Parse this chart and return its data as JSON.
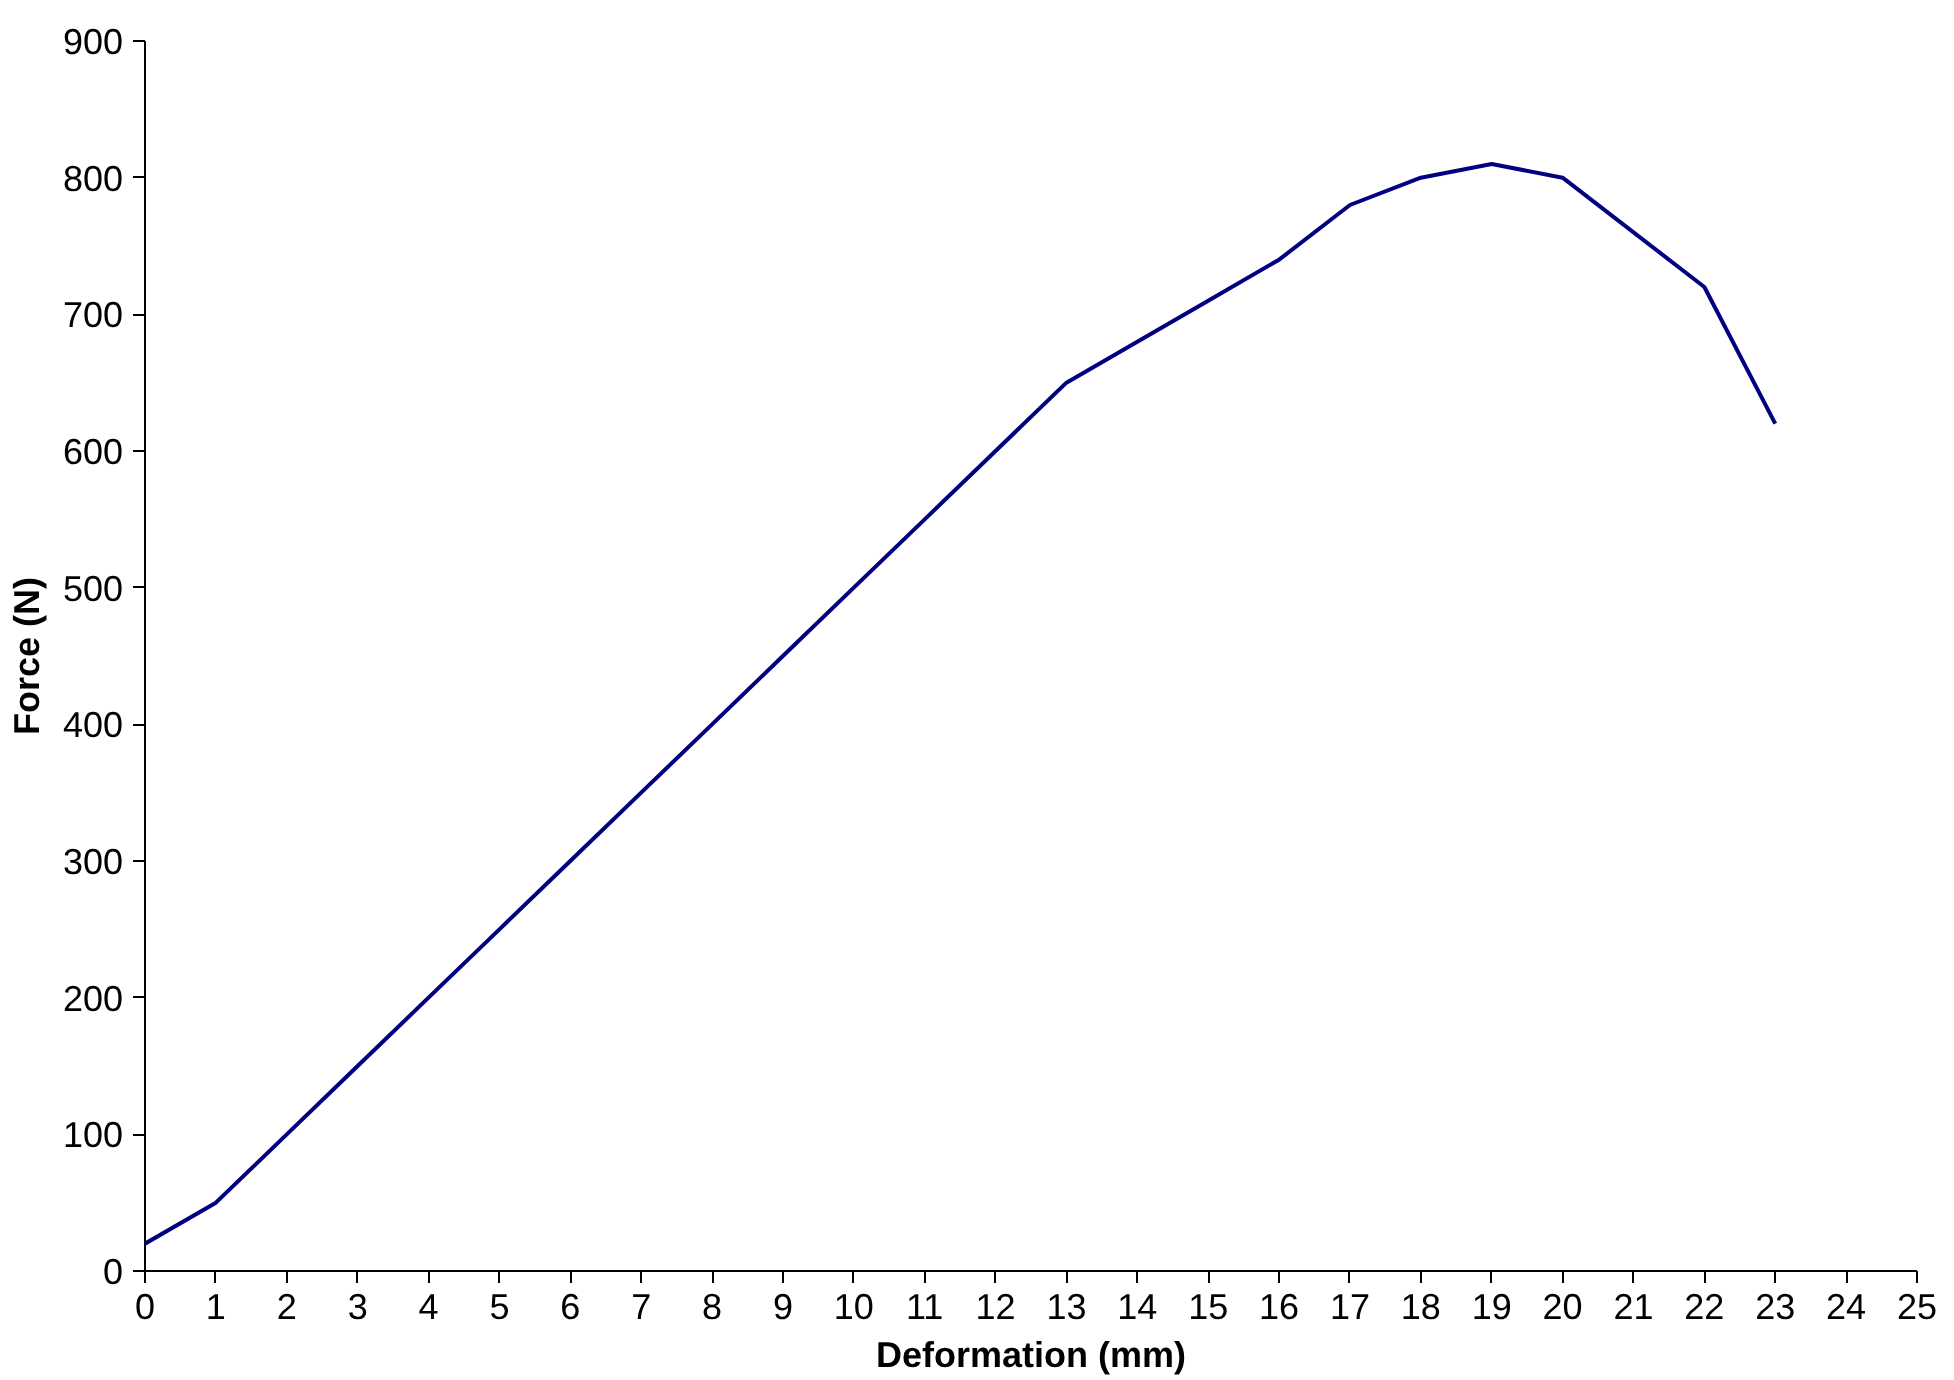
{
  "chart_data": {
    "type": "line",
    "xlabel": "Deformation (mm)",
    "ylabel": "Force (N)",
    "x": [
      0,
      1,
      2,
      3,
      4,
      5,
      6,
      7,
      8,
      9,
      10,
      11,
      12,
      13,
      14,
      15,
      16,
      17,
      18,
      19,
      20,
      22,
      23
    ],
    "series": [
      {
        "color": "#000080",
        "values": [
          20,
          50,
          100,
          150,
          200,
          250,
          300,
          350,
          400,
          450,
          500,
          550,
          600,
          650,
          680,
          710,
          740,
          780,
          800,
          810,
          800,
          720,
          620
        ]
      }
    ],
    "xlim": [
      0,
      25
    ],
    "ylim": [
      0,
      900
    ],
    "xticks": [
      0,
      1,
      2,
      3,
      4,
      5,
      6,
      7,
      8,
      9,
      10,
      11,
      12,
      13,
      14,
      15,
      16,
      17,
      18,
      19,
      20,
      21,
      22,
      23,
      24,
      25
    ],
    "yticks": [
      0,
      100,
      200,
      300,
      400,
      500,
      600,
      700,
      800,
      900
    ],
    "grid": false,
    "marker": "none",
    "line_style": "solid"
  }
}
